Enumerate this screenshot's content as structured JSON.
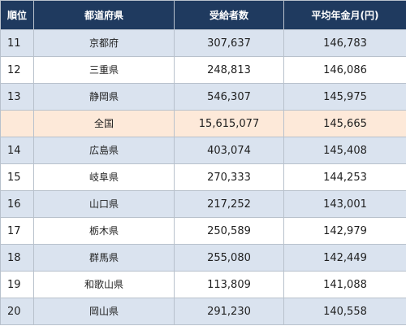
{
  "table": {
    "headers": {
      "rank": "順位",
      "prefecture": "都道府県",
      "recipients": "受給者数",
      "avg_pension": "平均年金月(円)"
    },
    "rows": [
      {
        "rank": "11",
        "prefecture": "京都府",
        "recipients": "307,637",
        "avg_pension": "146,783",
        "style": "alt"
      },
      {
        "rank": "12",
        "prefecture": "三重県",
        "recipients": "248,813",
        "avg_pension": "146,086",
        "style": "plain"
      },
      {
        "rank": "13",
        "prefecture": "静岡県",
        "recipients": "546,307",
        "avg_pension": "145,975",
        "style": "alt"
      },
      {
        "rank": "",
        "prefecture": "全国",
        "recipients": "15,615,077",
        "avg_pension": "145,665",
        "style": "national"
      },
      {
        "rank": "14",
        "prefecture": "広島県",
        "recipients": "403,074",
        "avg_pension": "145,408",
        "style": "alt"
      },
      {
        "rank": "15",
        "prefecture": "岐阜県",
        "recipients": "270,333",
        "avg_pension": "144,253",
        "style": "plain"
      },
      {
        "rank": "16",
        "prefecture": "山口県",
        "recipients": "217,252",
        "avg_pension": "143,001",
        "style": "alt"
      },
      {
        "rank": "17",
        "prefecture": "栃木県",
        "recipients": "250,589",
        "avg_pension": "142,979",
        "style": "plain"
      },
      {
        "rank": "18",
        "prefecture": "群馬県",
        "recipients": "255,080",
        "avg_pension": "142,449",
        "style": "alt"
      },
      {
        "rank": "19",
        "prefecture": "和歌山県",
        "recipients": "113,809",
        "avg_pension": "141,088",
        "style": "plain"
      },
      {
        "rank": "20",
        "prefecture": "岡山県",
        "recipients": "291,230",
        "avg_pension": "140,558",
        "style": "alt"
      }
    ]
  },
  "colors": {
    "header_bg": "#1f3a5f",
    "alt_row_bg": "#dae3ef",
    "national_row_bg": "#fde9d9"
  }
}
